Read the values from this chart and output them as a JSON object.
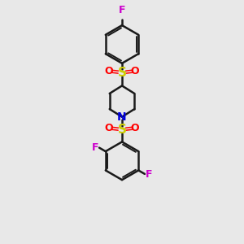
{
  "bg_color": "#e8e8e8",
  "bond_color": "#1a1a1a",
  "S_color": "#cccc00",
  "O_color": "#ff0000",
  "N_color": "#0000dd",
  "F_color": "#cc00cc",
  "figsize": [
    3.0,
    3.0
  ],
  "dpi": 100,
  "xlim": [
    0,
    10
  ],
  "ylim": [
    0,
    14
  ]
}
